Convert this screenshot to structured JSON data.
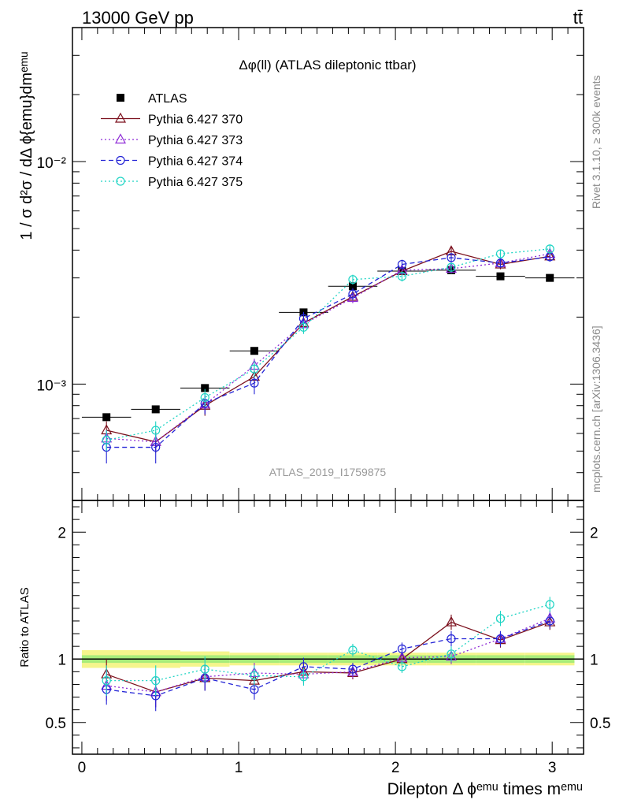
{
  "header": {
    "energy_label": "13000 GeV pp",
    "process_label": "tt̄",
    "plot_title": "Δφ(ll) (ATLAS dileptonic ttbar)",
    "analysis_id": "ATLAS_2019_I1759875",
    "side_label_rivet": "Rivet 3.1.10, ≥ 300k events",
    "side_label_mcplots": "mcplots.cern.ch [arXiv:1306.3436]"
  },
  "axes": {
    "main_ylabel": "1 / σ  d²σ / dΔ ϕ{emu}dmᵉᵐᵘ",
    "ratio_ylabel": "Ratio to ATLAS",
    "xlabel": "Dilepton Δ ϕᵉᵐᵘ times mᵉᵐᵘ",
    "main_yticks": [
      {
        "value": 0.01,
        "label": "10⁻²"
      },
      {
        "value": 0.001,
        "label": "10⁻³"
      }
    ],
    "ratio_yticks": [
      {
        "value": 2,
        "label": "2"
      },
      {
        "value": 1,
        "label": "1"
      },
      {
        "value": 0.5,
        "label": "0.5"
      }
    ],
    "xticks": [
      {
        "value": 0,
        "label": "0"
      },
      {
        "value": 1,
        "label": "1"
      },
      {
        "value": 2,
        "label": "2"
      },
      {
        "value": 3,
        "label": "3"
      }
    ]
  },
  "chart_data": [
    {
      "type": "line",
      "panel": "main",
      "yscale": "log",
      "xlim": [
        -0.06,
        3.2
      ],
      "ylim": [
        0.0003,
        0.04
      ],
      "x": [
        0.157,
        0.471,
        0.785,
        1.1,
        1.414,
        1.728,
        2.042,
        2.356,
        2.67,
        2.985
      ],
      "bin_width": 0.314,
      "series": [
        {
          "name": "ATLAS",
          "style": "data",
          "color": "#000000",
          "marker": "square",
          "values": [
            0.00071,
            0.00077,
            0.00096,
            0.00141,
            0.0021,
            0.00275,
            0.00322,
            0.00325,
            0.00305,
            0.003
          ]
        },
        {
          "name": "Pythia 6.427 370",
          "style": "solid",
          "color": "#7b0f1c",
          "marker": "triangle",
          "values": [
            0.00062,
            0.00055,
            0.0008,
            0.00108,
            0.00188,
            0.00247,
            0.00322,
            0.00395,
            0.00345,
            0.00375
          ]
        },
        {
          "name": "Pythia 6.427 373",
          "style": "dotted",
          "color": "#8e2bd6",
          "marker": "triangle",
          "values": [
            0.00057,
            0.00055,
            0.00081,
            0.00121,
            0.00186,
            0.00244,
            0.00325,
            0.0033,
            0.0035,
            0.00385
          ]
        },
        {
          "name": "Pythia 6.427 374",
          "style": "dashed",
          "color": "#2323d6",
          "marker": "circle",
          "values": [
            0.00052,
            0.00052,
            0.00082,
            0.00101,
            0.00197,
            0.00254,
            0.00345,
            0.0037,
            0.0035,
            0.00373
          ]
        },
        {
          "name": "Pythia 6.427 375",
          "style": "dotted",
          "color": "#1ed4c4",
          "marker": "circle",
          "values": [
            0.00056,
            0.00062,
            0.00087,
            0.00117,
            0.0018,
            0.00295,
            0.00305,
            0.00335,
            0.00385,
            0.00405
          ]
        }
      ],
      "errors": {
        "Pythia 6.427 370": [
          6e-05,
          6e-05,
          8e-05,
          0.0001,
          0.00012,
          0.00014,
          0.00015,
          0.00018,
          0.00017,
          0.00018
        ],
        "Pythia 6.427 373": [
          5e-05,
          5e-05,
          7e-05,
          9e-05,
          0.00011,
          0.00013,
          0.00014,
          0.00015,
          0.00015,
          0.00016
        ],
        "Pythia 6.427 374": [
          8e-05,
          8e-05,
          9e-05,
          0.00011,
          0.00014,
          0.00016,
          0.00017,
          0.00018,
          0.00017,
          0.00018
        ],
        "Pythia 6.427 375": [
          6e-05,
          6e-05,
          8e-05,
          0.0001,
          0.00012,
          0.00015,
          0.00016,
          0.00017,
          0.00018,
          0.00019
        ]
      }
    },
    {
      "type": "line",
      "panel": "ratio",
      "yscale": "linear",
      "xlim": [
        -0.06,
        3.2
      ],
      "ylim": [
        0.25,
        2.25
      ],
      "x": [
        0.157,
        0.471,
        0.785,
        1.1,
        1.414,
        1.728,
        2.042,
        2.356,
        2.67,
        2.985
      ],
      "reference_line": 1,
      "band_inner": [
        0.03,
        0.03,
        0.03,
        0.03,
        0.03,
        0.03,
        0.03,
        0.03,
        0.03,
        0.03
      ],
      "band_outer": [
        0.07,
        0.07,
        0.06,
        0.05,
        0.05,
        0.05,
        0.05,
        0.05,
        0.05,
        0.05
      ],
      "series": [
        {
          "name": "Pythia 6.427 370",
          "style": "solid",
          "color": "#7b0f1c",
          "marker": "triangle",
          "values": [
            0.88,
            0.74,
            0.85,
            0.83,
            0.9,
            0.89,
            1.0,
            1.29,
            1.15,
            1.29
          ]
        },
        {
          "name": "Pythia 6.427 373",
          "style": "dotted",
          "color": "#8e2bd6",
          "marker": "triangle",
          "values": [
            0.79,
            0.74,
            0.86,
            0.89,
            0.88,
            0.9,
            1.01,
            1.02,
            1.16,
            1.32
          ]
        },
        {
          "name": "Pythia 6.427 374",
          "style": "dashed",
          "color": "#2323d6",
          "marker": "circle",
          "values": [
            0.76,
            0.71,
            0.85,
            0.76,
            0.94,
            0.92,
            1.08,
            1.16,
            1.16,
            1.3
          ]
        },
        {
          "name": "Pythia 6.427 375",
          "style": "dotted",
          "color": "#1ed4c4",
          "marker": "circle",
          "values": [
            0.83,
            0.83,
            0.92,
            0.87,
            0.86,
            1.07,
            0.94,
            1.04,
            1.32,
            1.43
          ]
        }
      ],
      "errors": [
        0.12,
        0.12,
        0.1,
        0.08,
        0.07,
        0.05,
        0.05,
        0.06,
        0.06,
        0.06
      ]
    }
  ]
}
